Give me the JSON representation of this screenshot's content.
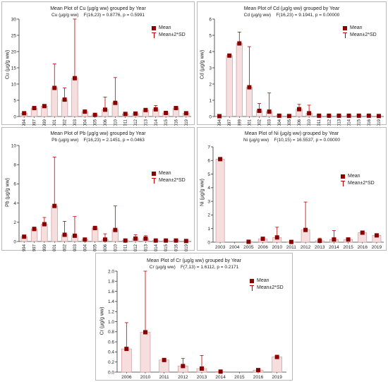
{
  "chart_data": [
    {
      "type": "bar",
      "title": "Mean Plot of Cu (µg/g ww) grouped by  Year",
      "subtitle": "Cu (µg/g ww)    F(16,23) = 0.8776, p = 0.5991",
      "ylabel": "Cu (µg/g ww)",
      "ylim": [
        0,
        30
      ],
      "yticks": [
        0,
        5,
        10,
        15,
        20,
        25,
        30
      ],
      "categories": [
        "1994",
        "1997",
        "1999",
        "2001",
        "2002",
        "2003",
        "2004",
        "2005",
        "2006",
        "2010",
        "2011",
        "2012",
        "2013",
        "2014",
        "2015",
        "2016",
        "2019"
      ],
      "values": [
        1.0,
        2.6,
        3.2,
        8.8,
        5.2,
        11.8,
        1.5,
        0.5,
        2.1,
        4.2,
        0.8,
        0.9,
        2.0,
        2.2,
        1.1,
        2.6,
        1.0
      ],
      "upper": [
        1.2,
        2.9,
        3.5,
        16.2,
        8.8,
        30.5,
        1.8,
        0.6,
        6.0,
        12.0,
        1.0,
        1.1,
        2.5,
        3.4,
        1.3,
        3.0,
        1.3
      ],
      "legend": [
        "Mean",
        "Mean±2*SD"
      ],
      "grid": false
    },
    {
      "type": "bar",
      "title": "Mean Plot of Cd (µg/g ww) grouped by  Year",
      "subtitle": "Cd (µg/g ww)    F(16,23) = 9.1941, p = 0.00000",
      "ylabel": "Cd (µg/g ww)",
      "ylim": [
        0,
        6
      ],
      "yticks": [
        0,
        1,
        2,
        3,
        4,
        5,
        6
      ],
      "categories": [
        "1994",
        "1997",
        "1999",
        "2001",
        "2002",
        "2003",
        "2004",
        "2005",
        "2006",
        "2010",
        "2011",
        "2012",
        "2013",
        "2014",
        "2015",
        "2016",
        "2019"
      ],
      "values": [
        0.02,
        3.75,
        4.5,
        1.8,
        0.35,
        0.3,
        0.05,
        0.03,
        0.45,
        0.2,
        0.05,
        0.05,
        0.05,
        0.05,
        0.05,
        0.05,
        0.03
      ],
      "upper": [
        0.04,
        3.8,
        5.2,
        4.3,
        0.8,
        1.45,
        0.07,
        0.05,
        0.75,
        0.7,
        0.07,
        0.07,
        0.08,
        0.08,
        0.08,
        0.07,
        0.05
      ],
      "legend": [
        "Mean",
        "Mean±2*SD"
      ],
      "grid": false
    },
    {
      "type": "bar",
      "title": "Mean Plot of Pb (µg/g ww) grouped by  Year",
      "subtitle": "Pb (µg/g ww)    F(16,23) = 2.1451, p = 0.0463",
      "ylabel": "Pb (µg/g ww)",
      "ylim": [
        0,
        10
      ],
      "yticks": [
        0,
        2,
        4,
        6,
        8,
        10
      ],
      "categories": [
        "1994",
        "1997",
        "1999",
        "2001",
        "2002",
        "2003",
        "2004",
        "2005",
        "2006",
        "2010",
        "2011",
        "2012",
        "2013",
        "2014",
        "2015",
        "2016",
        "2019"
      ],
      "values": [
        0.5,
        1.3,
        1.8,
        3.7,
        0.7,
        0.6,
        0.2,
        1.4,
        0.2,
        1.2,
        0.1,
        0.3,
        0.3,
        0.1,
        0.1,
        0.1,
        0.05
      ],
      "upper": [
        0.6,
        1.5,
        2.5,
        8.8,
        2.1,
        2.6,
        0.3,
        1.6,
        0.8,
        3.7,
        0.15,
        0.7,
        0.6,
        0.15,
        0.15,
        0.15,
        0.08
      ],
      "legend": [
        "Mean",
        "Mean±2*SD"
      ],
      "grid": false
    },
    {
      "type": "bar",
      "title": "Mean Plot of Ni (µg/g ww) grouped by  Year",
      "subtitle": "Ni (µg/g ww)    F(10,15) = 16.5537, p = 0.00000",
      "ylabel": "Ni (µg/g ww)",
      "ylim": [
        0,
        7
      ],
      "yticks": [
        0,
        1,
        2,
        3,
        4,
        5,
        6,
        7
      ],
      "categories": [
        "2003",
        "2004",
        "2005",
        "2006",
        "2010",
        "2011",
        "2012",
        "2013",
        "2014",
        "2015",
        "2016",
        "2019"
      ],
      "values": [
        6.1,
        0,
        0.03,
        0.25,
        0.35,
        0.02,
        0.9,
        0.1,
        0.2,
        0.2,
        0.7,
        0.5
      ],
      "upper": [
        6.2,
        0,
        0.05,
        0.35,
        1.1,
        0.04,
        2.95,
        0.3,
        0.85,
        0.3,
        0.8,
        0.6
      ],
      "legend": [
        "Mean",
        "Mean±2*SD"
      ],
      "grid": false
    },
    {
      "type": "bar",
      "title": "Mean Plot of Cr (µg/g ww) grouped by  Year",
      "subtitle": "Cr (µg/g ww)    F(7,13) = 1.6112, p = 0.2171",
      "ylabel": "Cr (µg/g ww)",
      "ylim": [
        0,
        2.0
      ],
      "yticks": [
        "0.0",
        "0.2",
        "0.4",
        "0.6",
        "0.8",
        "1.0",
        "1.2",
        "1.4",
        "1.6",
        "1.8",
        "2.0"
      ],
      "categories": [
        "2006",
        "2010",
        "2011",
        "2012",
        "2013",
        "2014",
        "2015",
        "2016",
        "2019"
      ],
      "values": [
        0.46,
        0.79,
        0.24,
        0.12,
        0.07,
        0.01,
        0,
        0.04,
        0.3
      ],
      "upper": [
        0.98,
        2.0,
        0.27,
        0.27,
        0.33,
        0.02,
        0,
        0.06,
        0.33
      ],
      "legend": [
        "Mean",
        "Mean±2*SD"
      ],
      "grid": false
    }
  ],
  "colors": {
    "bar_fill": "#f6dede",
    "bar_edge": "#c99a9a",
    "marker": "#8b0000",
    "whisker": "#c00000",
    "axis": "#333333"
  }
}
